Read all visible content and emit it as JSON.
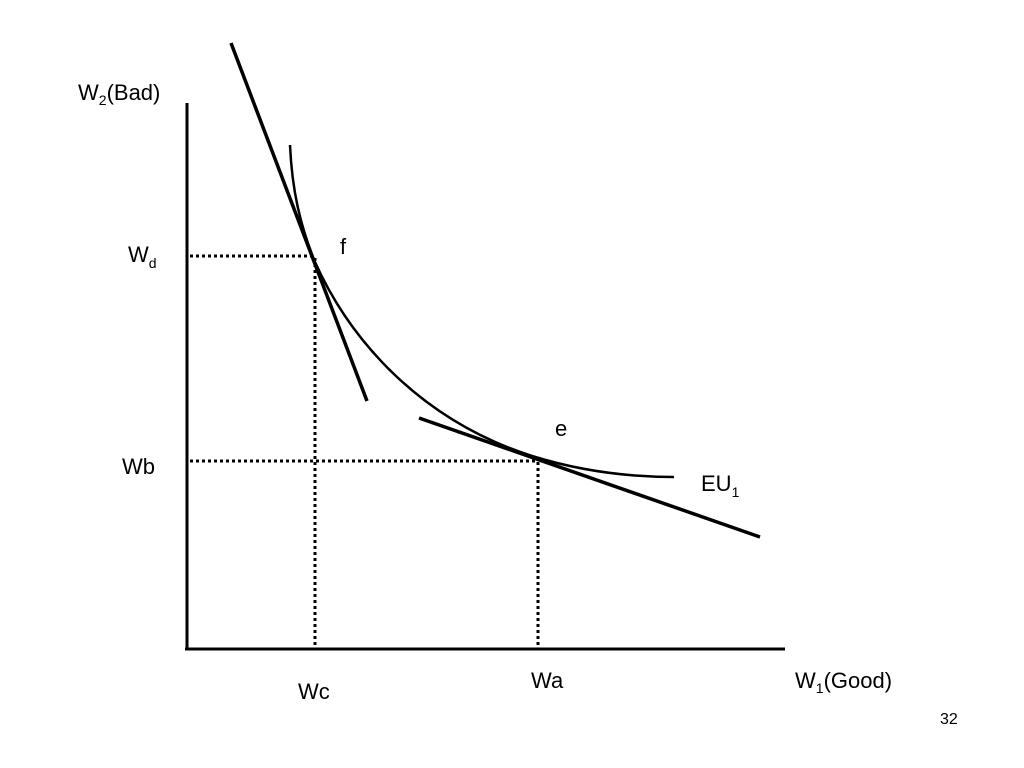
{
  "diagram": {
    "y_axis_label": {
      "base": "W",
      "sub": "2",
      "rest": "(Bad)"
    },
    "x_axis_label": {
      "base": "W",
      "sub": "1",
      "rest": "(Good)"
    },
    "wd_label": {
      "base": "W",
      "sub": "d"
    },
    "wb_label": "Wb",
    "wc_label": "Wc",
    "wa_label": "Wa",
    "point_f_label": "f",
    "point_e_label": "e",
    "curve_label": {
      "base": "EU",
      "sub": "1"
    },
    "colors": {
      "ink": "#000000",
      "background": "#ffffff"
    }
  },
  "page_number": "32"
}
